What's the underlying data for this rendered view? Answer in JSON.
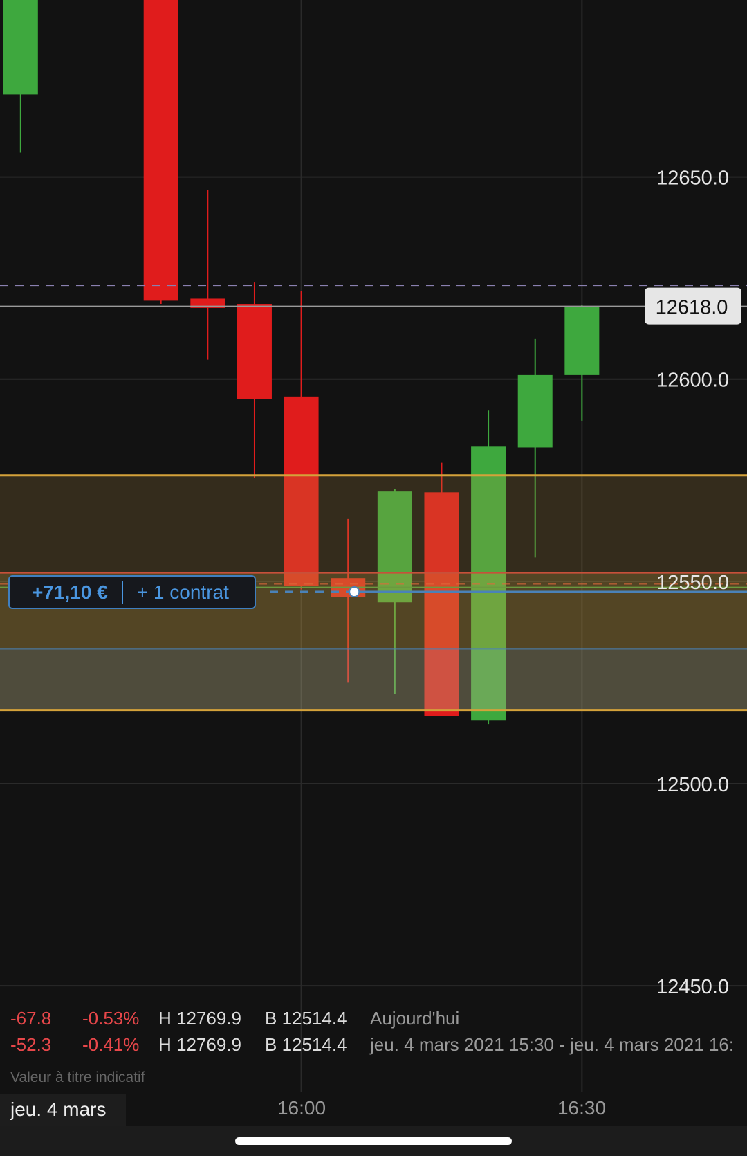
{
  "chart_data": {
    "type": "candlestick",
    "interval_minutes": 5,
    "ylim": [
      12440,
      12695
    ],
    "yticks": [
      "12650.0",
      "12600.0",
      "12550.0",
      "12500.0",
      "12450.0"
    ],
    "ytick_values": [
      12650,
      12600,
      12550,
      12500,
      12450
    ],
    "xticks": [
      "16:00",
      "16:30"
    ],
    "grid": true,
    "candles": [
      {
        "time": "15:30",
        "open": 12670.4,
        "high": 12700,
        "low": 12656.0,
        "close": 12700
      },
      {
        "time": "15:45",
        "open": 12700,
        "high": 12700,
        "low": 12618.6,
        "close": 12619.4
      },
      {
        "time": "15:50",
        "open": 12619.9,
        "high": 12646.7,
        "low": 12604.8,
        "close": 12617.6
      },
      {
        "time": "15:55",
        "open": 12618.6,
        "high": 12623.9,
        "low": 12575.6,
        "close": 12595.1
      },
      {
        "time": "16:00",
        "open": 12595.7,
        "high": 12621.7,
        "low": 12548.0,
        "close": 12548.8
      },
      {
        "time": "16:05",
        "open": 12550.8,
        "high": 12565.4,
        "low": 12525.1,
        "close": 12546.1
      },
      {
        "time": "16:10",
        "open": 12544.8,
        "high": 12572.9,
        "low": 12522.2,
        "close": 12572.2
      },
      {
        "time": "16:15",
        "open": 12572.0,
        "high": 12579.3,
        "low": 12516.6,
        "close": 12516.6
      },
      {
        "time": "16:20",
        "open": 12515.7,
        "high": 12592.2,
        "low": 12514.7,
        "close": 12583.3
      },
      {
        "time": "16:25",
        "open": 12583.1,
        "high": 12609.9,
        "low": 12555.9,
        "close": 12601.0
      },
      {
        "time": "16:30",
        "open": 12601.0,
        "high": 12618.3,
        "low": 12589.7,
        "close": 12618.0
      }
    ],
    "current_price": 12618.0,
    "current_price_label": "12618.0",
    "levels": [
      {
        "kind": "dashed",
        "price": 12623.2,
        "color": "#8a80b0"
      },
      {
        "kind": "solid",
        "price": 12552.1,
        "color": "#c8503a"
      },
      {
        "kind": "dashed",
        "price": 12549.4,
        "color": "#e06a3a"
      },
      {
        "kind": "solid",
        "price": 12548.5,
        "color": "#6a9a40"
      },
      {
        "kind": "entry",
        "price": 12547.4,
        "color": "#4a82b8"
      },
      {
        "kind": "solid",
        "price": 12533.3,
        "color": "#4a82b8"
      }
    ],
    "band": {
      "top": 12576.2,
      "bottom": 12518.2,
      "tiers": [
        12552.1,
        12533.3
      ],
      "border_color": "#d4a23a"
    },
    "colors": {
      "up": "#3ea83e",
      "down": "#e01c1c",
      "background": "#121212",
      "grid": "#2a2a2a"
    }
  },
  "position": {
    "pnl": "+71,10 €",
    "quantity": "+ 1 contrat",
    "color": "#4a96e0"
  },
  "stats": [
    {
      "change": "-67.8",
      "pct": "-0.53%",
      "high": "H 12769.9",
      "low": "B 12514.4",
      "period": "Aujourd'hui"
    },
    {
      "change": "-52.3",
      "pct": "-0.41%",
      "high": "H 12769.9",
      "low": "B 12514.4",
      "period": "jeu. 4 mars 2021 15:30 - jeu. 4 mars 2021 16:"
    }
  ],
  "note": "Valeur à titre indicatif",
  "date_chip": "jeu. 4 mars"
}
